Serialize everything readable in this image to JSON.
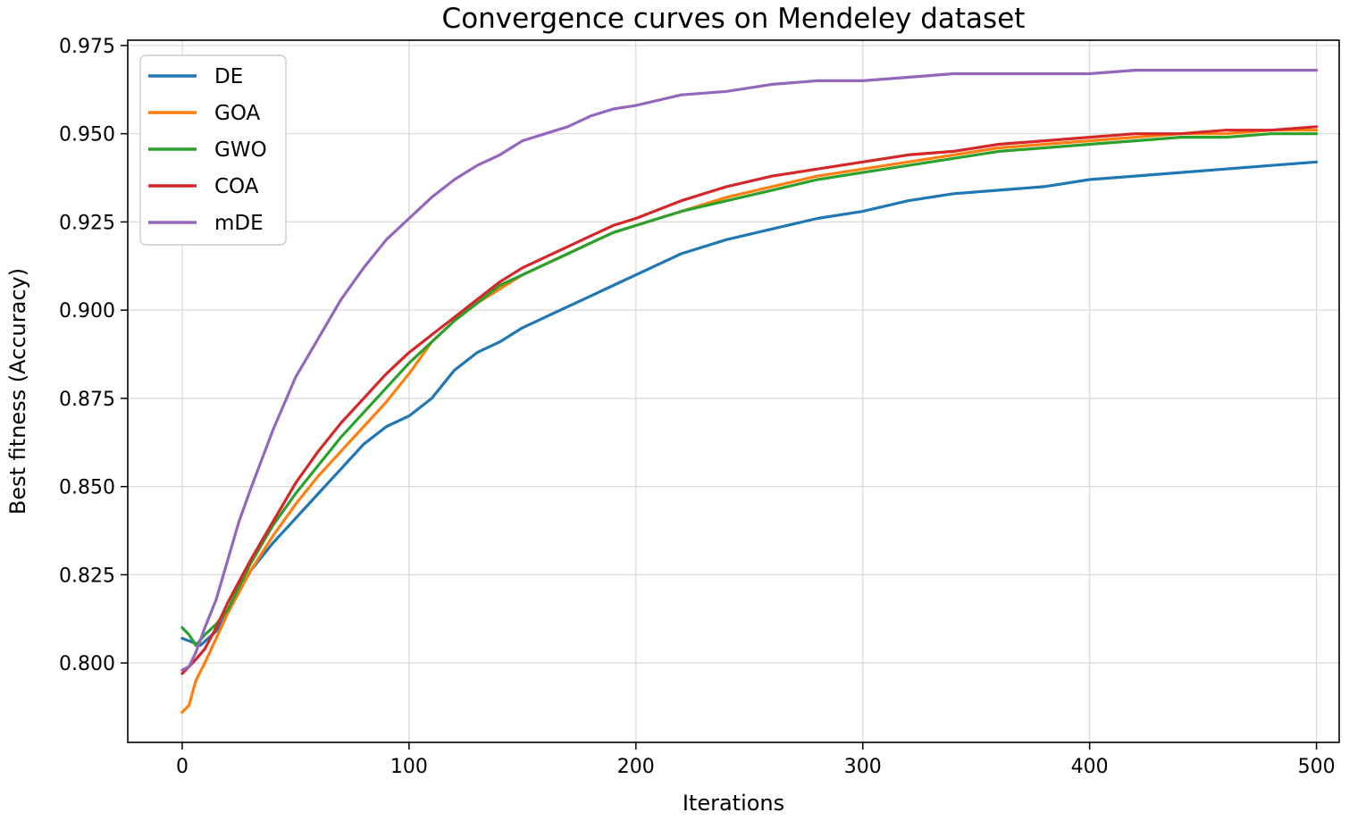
{
  "chart_data": {
    "type": "line",
    "title": "Convergence curves on Mendeley dataset",
    "xlabel": "Iterations",
    "ylabel": "Best fitness (Accuracy)",
    "xlim": [
      -24,
      510
    ],
    "ylim": [
      0.7775,
      0.9765
    ],
    "xticks": [
      0,
      100,
      200,
      300,
      400,
      500
    ],
    "yticks": [
      0.8,
      0.825,
      0.85,
      0.875,
      0.9,
      0.925,
      0.95,
      0.975
    ],
    "xtick_labels": [
      "0",
      "100",
      "200",
      "300",
      "400",
      "500"
    ],
    "ytick_labels": [
      "0.800",
      "0.825",
      "0.850",
      "0.875",
      "0.900",
      "0.925",
      "0.950",
      "0.975"
    ],
    "grid": true,
    "legend_position": "top-left",
    "series": [
      {
        "name": "DE",
        "color": "#1f77b4",
        "x": [
          0,
          4,
          8,
          15,
          20,
          30,
          40,
          50,
          60,
          70,
          80,
          90,
          100,
          110,
          120,
          130,
          140,
          150,
          160,
          170,
          180,
          190,
          200,
          220,
          240,
          260,
          280,
          300,
          320,
          340,
          360,
          380,
          400,
          420,
          440,
          460,
          480,
          500
        ],
        "values": [
          0.807,
          0.806,
          0.805,
          0.809,
          0.814,
          0.826,
          0.834,
          0.841,
          0.848,
          0.855,
          0.862,
          0.867,
          0.87,
          0.875,
          0.883,
          0.888,
          0.891,
          0.895,
          0.898,
          0.901,
          0.904,
          0.907,
          0.91,
          0.916,
          0.92,
          0.923,
          0.926,
          0.928,
          0.931,
          0.933,
          0.934,
          0.935,
          0.937,
          0.938,
          0.939,
          0.94,
          0.941,
          0.942
        ]
      },
      {
        "name": "GOA",
        "color": "#ff7f0e",
        "x": [
          0,
          3,
          6,
          10,
          15,
          20,
          30,
          40,
          50,
          60,
          70,
          80,
          90,
          100,
          110,
          120,
          130,
          140,
          150,
          160,
          170,
          180,
          190,
          200,
          220,
          240,
          260,
          280,
          300,
          320,
          340,
          360,
          380,
          400,
          420,
          440,
          460,
          480,
          500
        ],
        "values": [
          0.786,
          0.788,
          0.795,
          0.8,
          0.807,
          0.814,
          0.826,
          0.836,
          0.845,
          0.853,
          0.86,
          0.867,
          0.874,
          0.882,
          0.891,
          0.897,
          0.902,
          0.906,
          0.91,
          0.913,
          0.916,
          0.919,
          0.922,
          0.924,
          0.928,
          0.932,
          0.935,
          0.938,
          0.94,
          0.942,
          0.944,
          0.946,
          0.947,
          0.948,
          0.949,
          0.95,
          0.95,
          0.951,
          0.951
        ]
      },
      {
        "name": "GWO",
        "color": "#2ca02c",
        "x": [
          0,
          3,
          6,
          10,
          15,
          20,
          30,
          40,
          50,
          60,
          70,
          80,
          90,
          100,
          110,
          120,
          130,
          140,
          150,
          160,
          170,
          180,
          190,
          200,
          220,
          240,
          260,
          280,
          300,
          320,
          340,
          360,
          380,
          400,
          420,
          440,
          460,
          480,
          500
        ],
        "values": [
          0.81,
          0.808,
          0.805,
          0.808,
          0.811,
          0.815,
          0.828,
          0.839,
          0.848,
          0.856,
          0.864,
          0.871,
          0.878,
          0.885,
          0.891,
          0.897,
          0.902,
          0.907,
          0.91,
          0.913,
          0.916,
          0.919,
          0.922,
          0.924,
          0.928,
          0.931,
          0.934,
          0.937,
          0.939,
          0.941,
          0.943,
          0.945,
          0.946,
          0.947,
          0.948,
          0.949,
          0.949,
          0.95,
          0.95
        ]
      },
      {
        "name": "COA",
        "color": "#d62728",
        "x": [
          0,
          3,
          6,
          10,
          15,
          20,
          30,
          40,
          50,
          60,
          70,
          80,
          90,
          100,
          110,
          120,
          130,
          140,
          150,
          160,
          170,
          180,
          190,
          200,
          220,
          240,
          260,
          280,
          300,
          320,
          340,
          360,
          380,
          400,
          420,
          440,
          460,
          480,
          500
        ],
        "values": [
          0.797,
          0.799,
          0.801,
          0.804,
          0.81,
          0.817,
          0.829,
          0.84,
          0.851,
          0.86,
          0.868,
          0.875,
          0.882,
          0.888,
          0.893,
          0.898,
          0.903,
          0.908,
          0.912,
          0.915,
          0.918,
          0.921,
          0.924,
          0.926,
          0.931,
          0.935,
          0.938,
          0.94,
          0.942,
          0.944,
          0.945,
          0.947,
          0.948,
          0.949,
          0.95,
          0.95,
          0.951,
          0.951,
          0.952
        ]
      },
      {
        "name": "mDE",
        "color": "#9467bd",
        "x": [
          0,
          3,
          6,
          10,
          15,
          20,
          25,
          30,
          40,
          50,
          60,
          70,
          80,
          90,
          100,
          110,
          120,
          130,
          140,
          150,
          160,
          170,
          180,
          190,
          200,
          220,
          240,
          260,
          280,
          300,
          320,
          340,
          360,
          380,
          400,
          420,
          440,
          460,
          480,
          500
        ],
        "values": [
          0.798,
          0.799,
          0.803,
          0.81,
          0.818,
          0.829,
          0.84,
          0.849,
          0.866,
          0.881,
          0.892,
          0.903,
          0.912,
          0.92,
          0.926,
          0.932,
          0.937,
          0.941,
          0.944,
          0.948,
          0.95,
          0.952,
          0.955,
          0.957,
          0.958,
          0.961,
          0.962,
          0.964,
          0.965,
          0.965,
          0.966,
          0.967,
          0.967,
          0.967,
          0.967,
          0.968,
          0.968,
          0.968,
          0.968,
          0.968
        ]
      }
    ]
  }
}
